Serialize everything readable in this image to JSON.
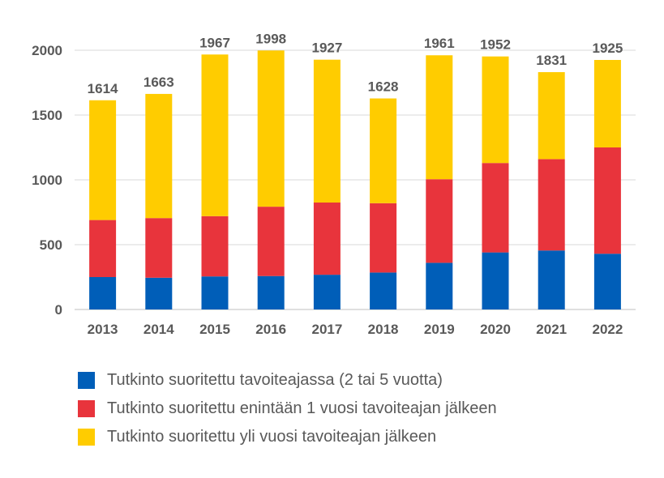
{
  "chart_data": {
    "type": "bar",
    "stacked": true,
    "categories": [
      "2013",
      "2014",
      "2015",
      "2016",
      "2017",
      "2018",
      "2019",
      "2020",
      "2021",
      "2022"
    ],
    "series": [
      {
        "name": "Tutkinto suoritettu tavoiteajassa (2 tai 5 vuotta)",
        "color": "#005EB8",
        "values": [
          250,
          245,
          255,
          258,
          268,
          285,
          360,
          440,
          455,
          430
        ]
      },
      {
        "name": "Tutkinto suoritettu enintään 1 vuosi tavoiteajan jälkeen",
        "color": "#E8343C",
        "values": [
          440,
          460,
          465,
          535,
          557,
          535,
          645,
          690,
          705,
          820
        ]
      },
      {
        "name": "Tutkinto suoritettu yli vuosi tavoiteajan jälkeen",
        "color": "#FFCC00",
        "values": [
          924,
          958,
          1247,
          1205,
          1102,
          808,
          956,
          822,
          671,
          675
        ]
      }
    ],
    "totals": [
      1614,
      1663,
      1967,
      1998,
      1927,
      1628,
      1961,
      1952,
      1831,
      1925
    ],
    "yticks": [
      0,
      500,
      1000,
      1500,
      2000
    ],
    "ylim": [
      0,
      2000
    ],
    "grid": true,
    "legend_position": "bottom"
  }
}
